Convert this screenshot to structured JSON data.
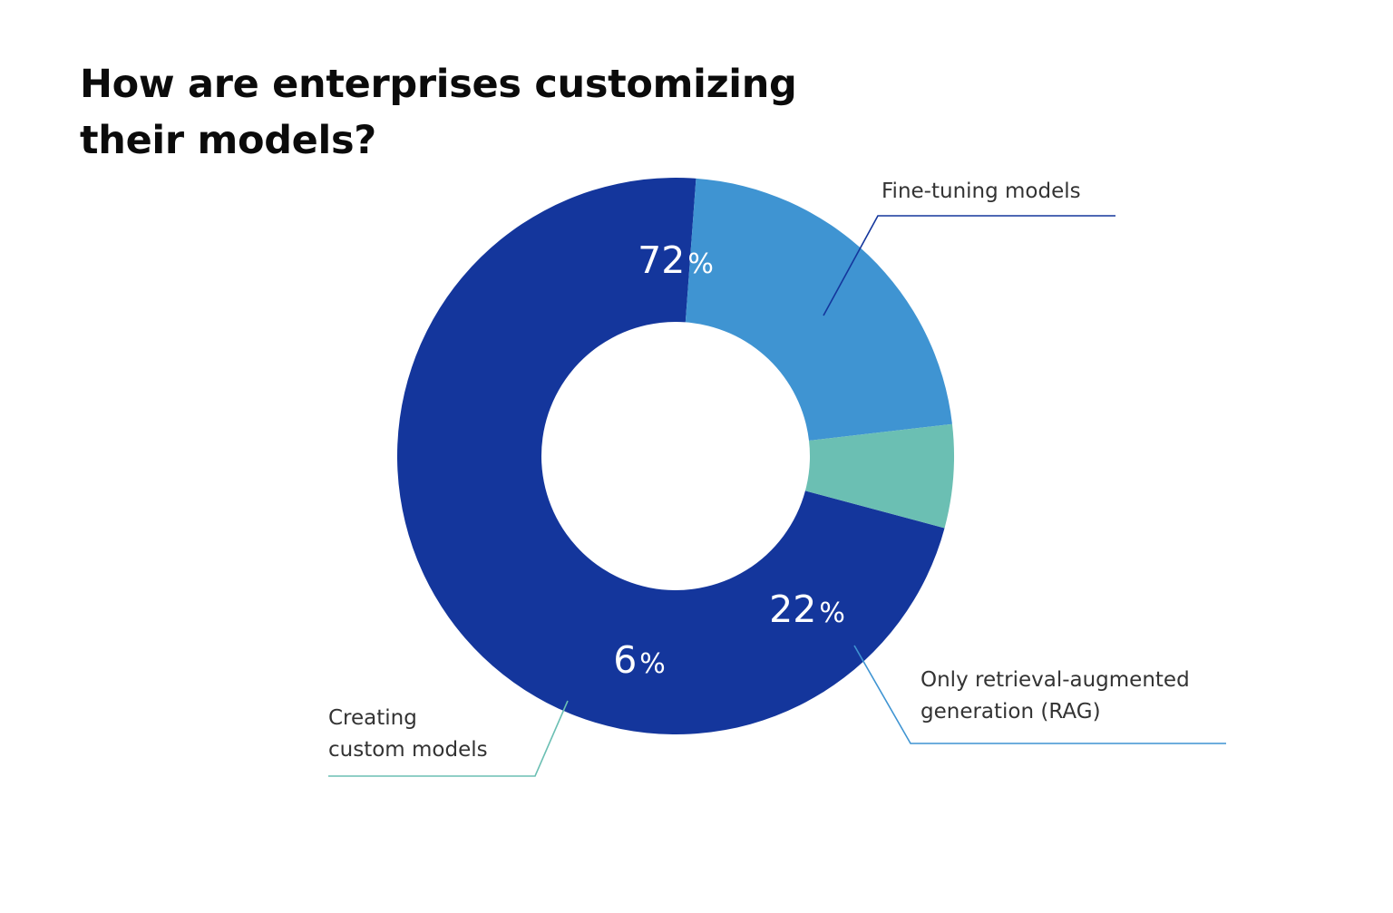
{
  "chart_data": {
    "type": "pie",
    "title": [
      "How are enterprises customizing",
      "their models?"
    ],
    "categories": [
      "Fine-tuning models",
      "Only retrieval-augmented generation (RAG)",
      "Creating custom models"
    ],
    "series": [
      {
        "values": [
          72,
          22,
          6
        ]
      }
    ],
    "value_labels": [
      {
        "number": "72",
        "unit": "%"
      },
      {
        "number": "22",
        "unit": "%"
      },
      {
        "number": "6",
        "unit": "%"
      }
    ],
    "legend_labels": [
      [
        "Fine-tuning models"
      ],
      [
        "Only retrieval-augmented",
        "generation (RAG)"
      ],
      [
        "Creating",
        "custom models"
      ]
    ],
    "colors": [
      "#14369c",
      "#3f94d2",
      "#6bbfb3"
    ],
    "style": "donut",
    "start_angle_deg": 105,
    "direction": "clockwise",
    "legend": "callouts"
  }
}
